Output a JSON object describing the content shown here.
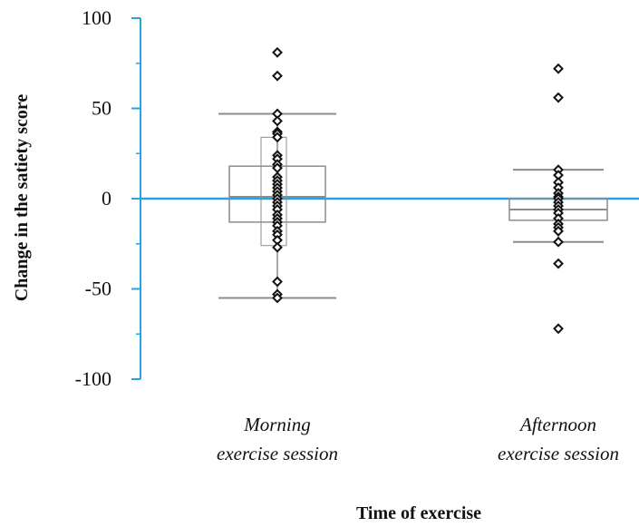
{
  "chart_data": {
    "type": "box",
    "ylabel": "Change in the satiety score",
    "xlabel": "Time of exercise",
    "ylim": [
      -100,
      100
    ],
    "yticks": [
      100,
      50,
      0,
      -50,
      -100
    ],
    "ytick_labels": [
      "100",
      "50",
      "0",
      "-50",
      "-100"
    ],
    "reference_line": 0,
    "grid": false,
    "colors": {
      "axis": "#29a3dd",
      "box": "#8c8c8c",
      "points": "#111111"
    },
    "categories": [
      {
        "lines": [
          "Morning",
          "exercise session"
        ]
      },
      {
        "lines": [
          "Afternoon",
          "exercise session"
        ]
      }
    ],
    "groups": [
      {
        "box": {
          "whisker_low": -55,
          "q1": -13,
          "median": 1,
          "q3": 18,
          "whisker_high": 47
        },
        "inner_box": {
          "low": -26,
          "high": 34
        },
        "points": [
          81,
          68,
          47,
          43,
          37,
          36,
          34,
          24,
          22,
          19,
          17,
          12,
          10,
          8,
          6,
          4,
          2,
          0,
          -2,
          -4,
          -6,
          -9,
          -11,
          -13,
          -15,
          -18,
          -20,
          -23,
          -27,
          -46,
          -53,
          -55
        ]
      },
      {
        "box": {
          "whisker_low": -24,
          "q1": -12,
          "median": -6,
          "q3": 0,
          "whisker_high": 16
        },
        "points": [
          72,
          56,
          16,
          13,
          9,
          6,
          3,
          1,
          0,
          -2,
          -4,
          -6,
          -8,
          -11,
          -14,
          -16,
          -18,
          -24,
          -36,
          -72
        ]
      }
    ]
  }
}
